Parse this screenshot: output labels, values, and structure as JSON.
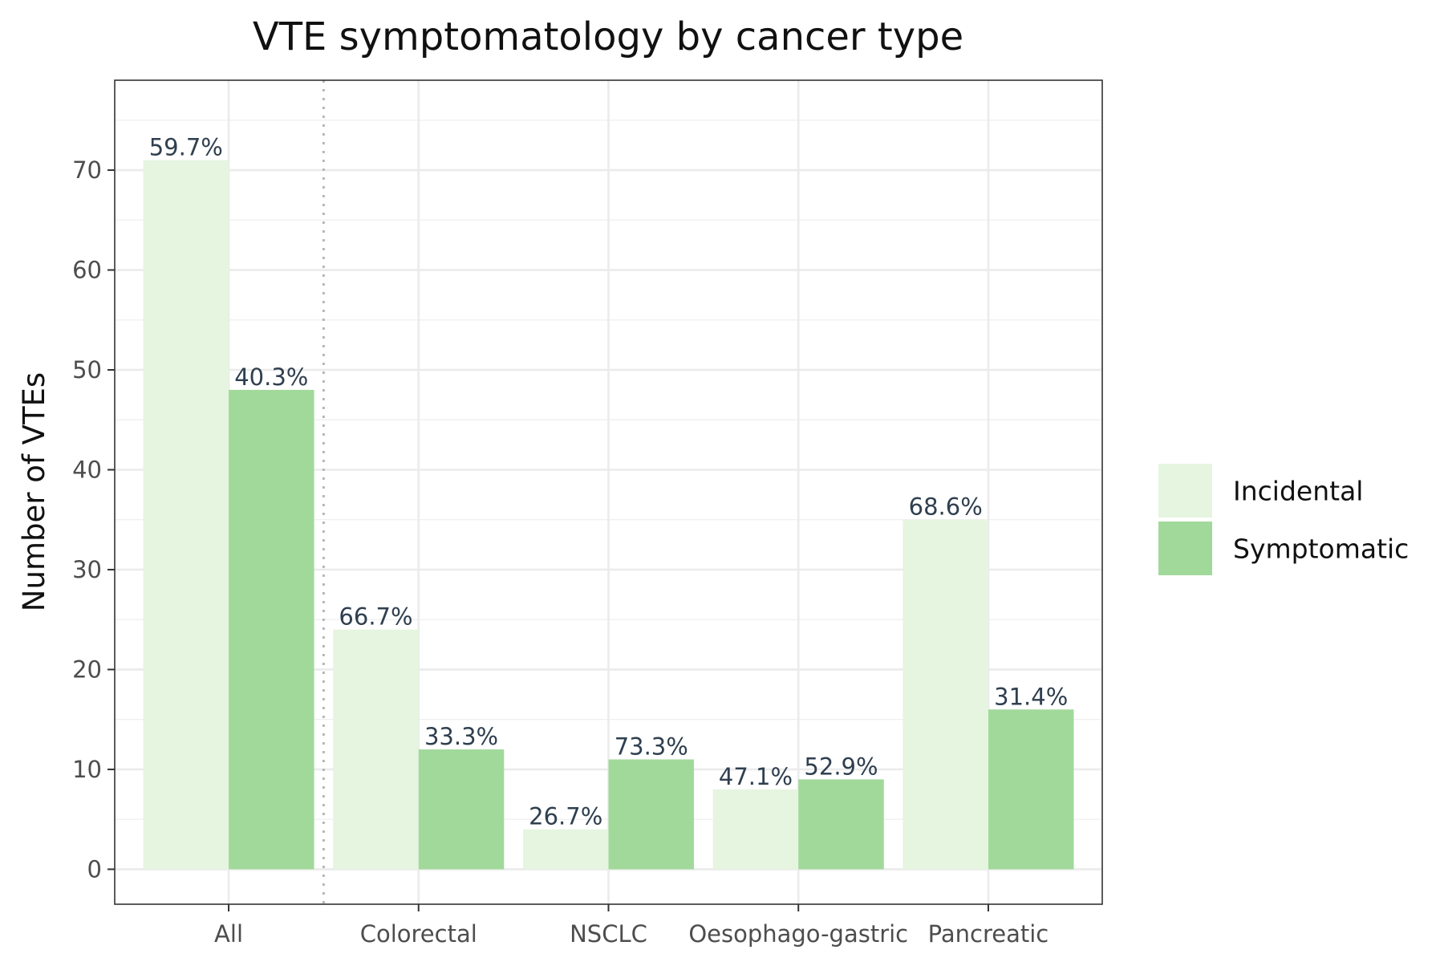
{
  "chart_data": {
    "type": "bar",
    "title": "VTE symptomatology by cancer type",
    "xlabel": "",
    "ylabel": "Number of VTEs",
    "categories": [
      "All",
      "Colorectal",
      "NSCLC",
      "Oesophago-gastric",
      "Pancreatic"
    ],
    "series": [
      {
        "name": "Incidental",
        "color": "#e5f5e0",
        "values": [
          71,
          24,
          4,
          8,
          35
        ],
        "labels": [
          "59.7%",
          "66.7%",
          "26.7%",
          "47.1%",
          "68.6%"
        ]
      },
      {
        "name": "Symptomatic",
        "color": "#a1d99b",
        "values": [
          48,
          12,
          11,
          9,
          16
        ],
        "labels": [
          "40.3%",
          "33.3%",
          "73.3%",
          "52.9%",
          "31.4%"
        ]
      }
    ],
    "ylim": [
      -3.5,
      79
    ],
    "yticks": [
      0,
      10,
      20,
      30,
      40,
      50,
      60,
      70
    ],
    "grid": true,
    "legend_position": "right",
    "separator_after_category": "All"
  }
}
